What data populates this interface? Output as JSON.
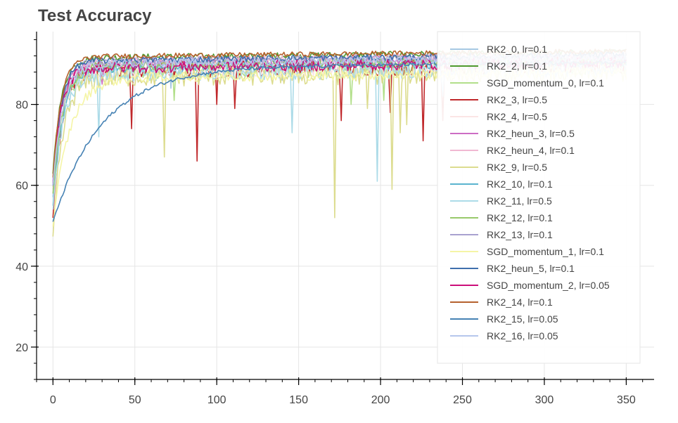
{
  "chart_data": {
    "type": "line",
    "title": "Test Accuracy",
    "xlabel": "",
    "ylabel": "",
    "xlim": [
      -10,
      367
    ],
    "ylim": [
      12,
      98
    ],
    "x_ticks": [
      0,
      50,
      100,
      150,
      200,
      250,
      300,
      350
    ],
    "y_ticks": [
      20,
      40,
      60,
      80
    ],
    "x_minor_step": 10,
    "y_minor_step": 4,
    "grid": true,
    "legend_placement": "top-right",
    "series": [
      {
        "name": "RK2_0, lr=0.1",
        "color": "#a6c8e3",
        "start": 57,
        "plateau": 90.0,
        "tau": 6,
        "noise": 1.2,
        "dips": [
          [
            72,
            84
          ],
          [
            140,
            86
          ]
        ]
      },
      {
        "name": "RK2_2, lr=0.1",
        "color": "#4f9a2e",
        "start": 63,
        "plateau": 91.5,
        "tau": 5,
        "noise": 0.8,
        "dips": []
      },
      {
        "name": "SGD_momentum_0, lr=0.1",
        "color": "#b2df8a",
        "start": 60,
        "plateau": 88.0,
        "tau": 6,
        "noise": 2.0,
        "dips": [
          [
            74,
            81
          ],
          [
            182,
            80
          ],
          [
            202,
            81
          ]
        ]
      },
      {
        "name": "RK2_3, lr=0.5",
        "color": "#c0282b",
        "start": 52,
        "plateau": 88.5,
        "tau": 5,
        "noise": 2.2,
        "dips": [
          [
            48,
            74
          ],
          [
            88,
            66
          ],
          [
            100,
            80
          ],
          [
            111,
            79
          ],
          [
            176,
            76
          ],
          [
            206,
            78
          ],
          [
            226,
            71
          ],
          [
            238,
            76
          ]
        ]
      },
      {
        "name": "RK2_4, lr=0.5",
        "color": "#fbe5e5",
        "start": 58,
        "plateau": 88.0,
        "tau": 6,
        "noise": 2.0,
        "dips": []
      },
      {
        "name": "RK2_heun_3, lr=0.5",
        "color": "#cc6dc4",
        "start": 61,
        "plateau": 90.0,
        "tau": 5,
        "noise": 1.2,
        "dips": [
          [
            30,
            85
          ]
        ]
      },
      {
        "name": "RK2_heun_4, lr=0.1",
        "color": "#f1b8d2",
        "start": 59,
        "plateau": 90.5,
        "tau": 6,
        "noise": 1.2,
        "dips": []
      },
      {
        "name": "RK2_9, lr=0.5",
        "color": "#dcdc8e",
        "start": 47,
        "plateau": 86.5,
        "tau": 6,
        "noise": 2.4,
        "dips": [
          [
            68,
            67
          ],
          [
            172,
            52
          ],
          [
            192,
            79
          ],
          [
            207,
            59
          ],
          [
            212,
            73
          ],
          [
            216,
            75
          ]
        ]
      },
      {
        "name": "RK2_10, lr=0.1",
        "color": "#5ab4cf",
        "start": 55,
        "plateau": 89.0,
        "tau": 6,
        "noise": 1.2,
        "dips": []
      },
      {
        "name": "RK2_11, lr=0.5",
        "color": "#acdbe8",
        "start": 54,
        "plateau": 87.5,
        "tau": 6,
        "noise": 2.0,
        "dips": [
          [
            28,
            72
          ],
          [
            146,
            73
          ],
          [
            198,
            61
          ],
          [
            238,
            82
          ]
        ]
      },
      {
        "name": "RK2_12, lr=0.1",
        "color": "#98c96b",
        "start": 58,
        "plateau": 89.5,
        "tau": 6,
        "noise": 1.2,
        "dips": []
      },
      {
        "name": "RK2_13, lr=0.1",
        "color": "#a9a2d0",
        "start": 60,
        "plateau": 90.5,
        "tau": 5,
        "noise": 1.0,
        "dips": []
      },
      {
        "name": "SGD_momentum_1, lr=0.1",
        "color": "#f5f5a6",
        "start": 50,
        "plateau": 86.5,
        "tau": 10,
        "noise": 1.2,
        "dips": []
      },
      {
        "name": "RK2_heun_5, lr=0.1",
        "color": "#3f6fad",
        "start": 60,
        "plateau": 90.8,
        "tau": 5,
        "noise": 0.8,
        "dips": []
      },
      {
        "name": "SGD_momentum_2, lr=0.05",
        "color": "#cc0f7a",
        "start": 60,
        "plateau": 89.0,
        "tau": 5,
        "noise": 1.4,
        "dips": []
      },
      {
        "name": "RK2_14, lr=0.1",
        "color": "#b5612e",
        "start": 62,
        "plateau": 91.8,
        "tau": 5,
        "noise": 0.6,
        "dips": []
      },
      {
        "name": "RK2_15, lr=0.05",
        "color": "#4682b4",
        "start": 51,
        "plateau": 89.0,
        "tau": 30,
        "noise": 0.4,
        "dips": []
      },
      {
        "name": "RK2_16, lr=0.05",
        "color": "#b5c6ec",
        "start": 60,
        "plateau": 90.0,
        "tau": 6,
        "noise": 1.0,
        "dips": []
      }
    ]
  }
}
